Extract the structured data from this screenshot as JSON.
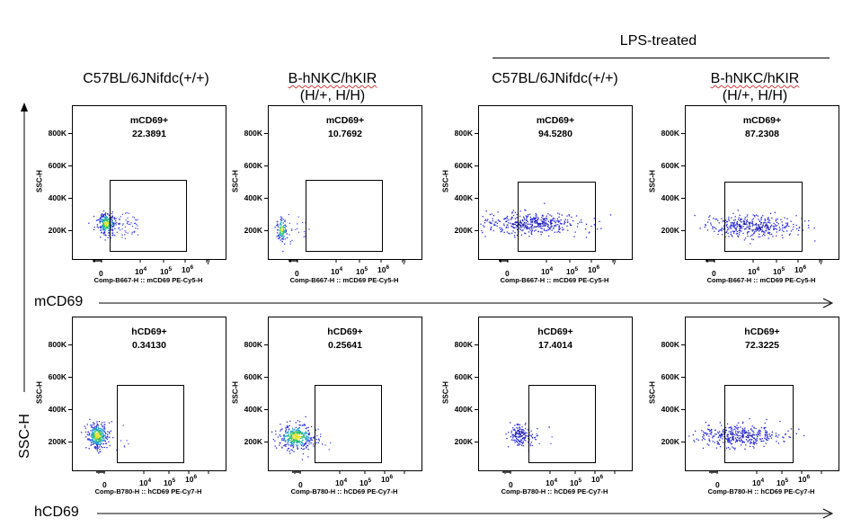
{
  "group_label": "LPS-treated",
  "columns": [
    {
      "line1": "C57BL/6JNifdc(+/+)",
      "line2": ""
    },
    {
      "line1": "B-hNKC/hKIR",
      "line2": "(H/+, H/H)"
    },
    {
      "line1": "C57BL/6JNifdc(+/+)",
      "line2": ""
    },
    {
      "line1": "B-hNKC/hKIR",
      "line2": "(H/+, H/H)"
    }
  ],
  "axes": {
    "y_arrow_label": "SSC-H",
    "row_labels": [
      "mCD69",
      "hCD69"
    ]
  },
  "panel_axes": {
    "y_title": "SSC-H",
    "y_ticks": [
      "200K",
      "400K",
      "600K",
      "800K"
    ],
    "x_ticks_row1": [
      "0",
      "10",
      "4",
      "10",
      "5",
      "10",
      "6",
      "10",
      "7"
    ],
    "x_ticks_row2": [
      "0",
      "10",
      "4",
      "10",
      "5",
      "10",
      "6"
    ],
    "x_title_row1": "Comp-B667-H :: mCD69 PE-Cy5-H",
    "x_title_row2": "Comp-B780-H :: hCD69 PE-Cy7-H"
  },
  "chart_data": [
    {
      "type": "scatter",
      "row": "mCD69",
      "column": "C57BL/6JNifdc(+/+)",
      "gate": "mCD69+",
      "percent": "22.3891",
      "ylabel": "SSC-H",
      "xlabel": "Comp-B667-H :: mCD69 PE-Cy5-H",
      "population": {
        "x_center": 0,
        "ssc_center": 200000,
        "spread": "tight-left"
      }
    },
    {
      "type": "scatter",
      "row": "mCD69",
      "column": "B-hNKC/hKIR (H/+, H/H)",
      "gate": "mCD69+",
      "percent": "10.7692",
      "ylabel": "SSC-H",
      "xlabel": "Comp-B667-H :: mCD69 PE-Cy5-H",
      "population": {
        "x_center": 0,
        "ssc_center": 180000,
        "spread": "narrow"
      }
    },
    {
      "type": "scatter",
      "row": "mCD69",
      "column": "LPS-treated C57BL/6JNifdc(+/+)",
      "gate": "mCD69+",
      "percent": "94.5280",
      "ylabel": "SSC-H",
      "xlabel": "Comp-B667-H :: mCD69 PE-Cy5-H",
      "population": {
        "x_center": 10000,
        "ssc_center": 200000,
        "spread": "wide"
      }
    },
    {
      "type": "scatter",
      "row": "mCD69",
      "column": "LPS-treated B-hNKC/hKIR (H/+, H/H)",
      "gate": "mCD69+",
      "percent": "87.2308",
      "ylabel": "SSC-H",
      "xlabel": "Comp-B667-H :: mCD69 PE-Cy5-H",
      "population": {
        "x_center": 10000,
        "ssc_center": 200000,
        "spread": "wide"
      }
    },
    {
      "type": "scatter",
      "row": "hCD69",
      "column": "C57BL/6JNifdc(+/+)",
      "gate": "hCD69+",
      "percent": "0.34130",
      "ylabel": "SSC-H",
      "xlabel": "Comp-B780-H :: hCD69 PE-Cy7-H",
      "population": {
        "x_center": 0,
        "ssc_center": 200000,
        "spread": "compact"
      }
    },
    {
      "type": "scatter",
      "row": "hCD69",
      "column": "B-hNKC/hKIR (H/+, H/H)",
      "gate": "hCD69+",
      "percent": "0.25641",
      "ylabel": "SSC-H",
      "xlabel": "Comp-B780-H :: hCD69 PE-Cy7-H",
      "population": {
        "x_center": 0,
        "ssc_center": 200000,
        "spread": "compact"
      }
    },
    {
      "type": "scatter",
      "row": "hCD69",
      "column": "LPS-treated C57BL/6JNifdc(+/+)",
      "gate": "hCD69+",
      "percent": "17.4014",
      "ylabel": "SSC-H",
      "xlabel": "Comp-B780-H :: hCD69 PE-Cy7-H",
      "population": {
        "x_center": 0,
        "ssc_center": 200000,
        "spread": "sparse"
      }
    },
    {
      "type": "scatter",
      "row": "hCD69",
      "column": "LPS-treated B-hNKC/hKIR (H/+, H/H)",
      "gate": "hCD69+",
      "percent": "72.3225",
      "ylabel": "SSC-H",
      "xlabel": "Comp-B780-H :: hCD69 PE-Cy7-H",
      "population": {
        "x_center": 10000,
        "ssc_center": 200000,
        "spread": "wide"
      }
    }
  ]
}
